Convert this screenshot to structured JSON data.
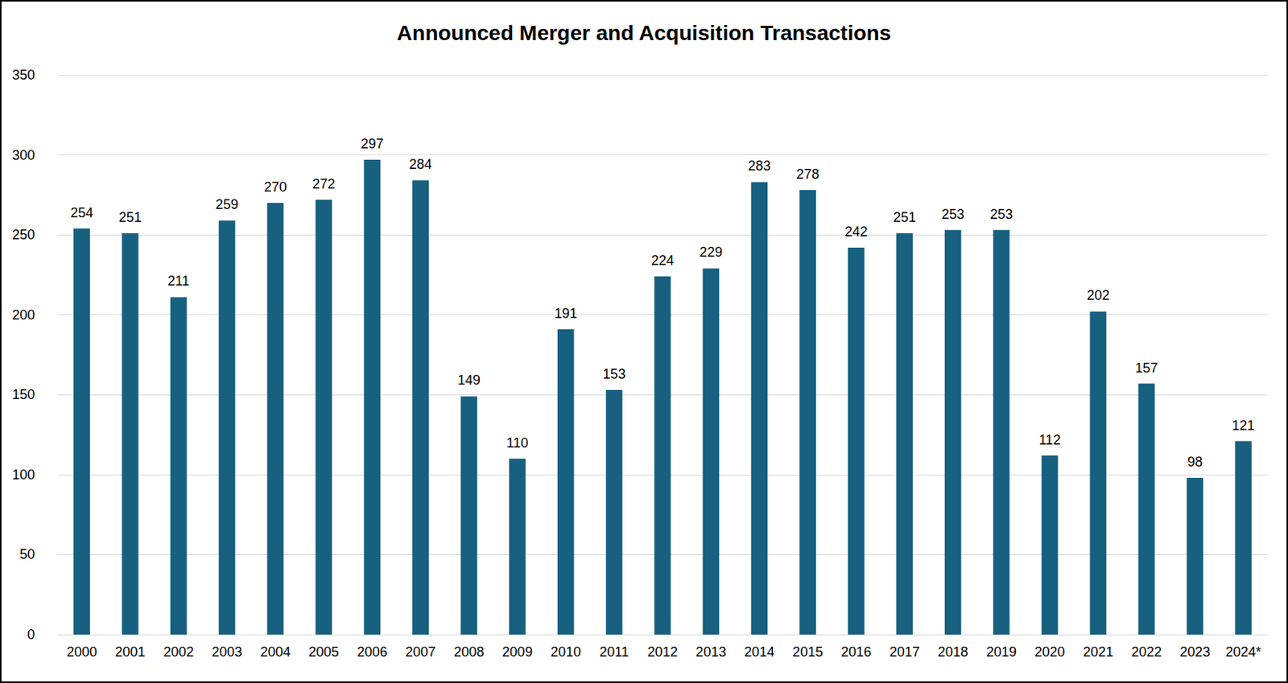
{
  "chart_data": {
    "type": "bar",
    "title": "Announced Merger and Acquisition Transactions",
    "categories": [
      "2000",
      "2001",
      "2002",
      "2003",
      "2004",
      "2005",
      "2006",
      "2007",
      "2008",
      "2009",
      "2010",
      "2011",
      "2012",
      "2013",
      "2014",
      "2015",
      "2016",
      "2017",
      "2018",
      "2019",
      "2020",
      "2021",
      "2022",
      "2023",
      "2024*"
    ],
    "values": [
      254,
      251,
      211,
      259,
      270,
      272,
      297,
      284,
      149,
      110,
      191,
      153,
      224,
      229,
      283,
      278,
      242,
      251,
      253,
      253,
      112,
      202,
      157,
      98,
      121
    ],
    "color": "#17607f",
    "ylim": [
      0,
      350
    ],
    "yticks": [
      0,
      50,
      100,
      150,
      200,
      250,
      300,
      350
    ],
    "grid": true,
    "data_labels": true
  }
}
